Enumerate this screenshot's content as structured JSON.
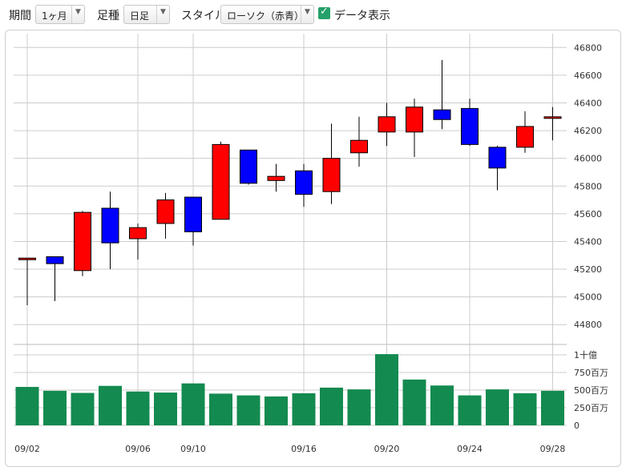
{
  "toolbar": {
    "period_label": "期間",
    "period_value": "1ヶ月",
    "interval_label": "足種",
    "interval_value": "日足",
    "style_label": "スタイル",
    "style_value": "ローソク（赤青）",
    "data_display_label": "データ表示",
    "data_display_checked": true
  },
  "colors": {
    "up": "#ff0000",
    "down": "#0000ff",
    "volume": "#138a4f",
    "grid": "#cccccc"
  },
  "chart_data": {
    "type": "candlestick",
    "price_axis": {
      "ticks": [
        "44800",
        "45000",
        "45200",
        "45400",
        "45600",
        "45800",
        "46000",
        "46200",
        "46400",
        "46600",
        "46800"
      ],
      "ylim": [
        44680,
        46900
      ]
    },
    "volume_axis": {
      "ticks": [
        "0",
        "250百万",
        "500百万",
        "750百万",
        "1十億"
      ],
      "ylim": [
        0,
        1000
      ]
    },
    "x_tick_labels": [
      {
        "label": "09/02",
        "index": 0
      },
      {
        "label": "09/06",
        "index": 4
      },
      {
        "label": "09/10",
        "index": 6
      },
      {
        "label": "09/16",
        "index": 10
      },
      {
        "label": "09/20",
        "index": 13
      },
      {
        "label": "09/24",
        "index": 16
      },
      {
        "label": "09/28",
        "index": 19
      }
    ],
    "candles": [
      {
        "o": 45270,
        "h": 45280,
        "l": 44940,
        "c": 45280,
        "v": 545
      },
      {
        "o": 45290,
        "h": 45290,
        "l": 44970,
        "c": 45240,
        "v": 490
      },
      {
        "o": 45190,
        "h": 45620,
        "l": 45150,
        "c": 45610,
        "v": 460
      },
      {
        "o": 45640,
        "h": 45760,
        "l": 45200,
        "c": 45390,
        "v": 560
      },
      {
        "o": 45420,
        "h": 45530,
        "l": 45270,
        "c": 45500,
        "v": 480
      },
      {
        "o": 45530,
        "h": 45750,
        "l": 45420,
        "c": 45700,
        "v": 465
      },
      {
        "o": 45720,
        "h": 45720,
        "l": 45370,
        "c": 45470,
        "v": 595
      },
      {
        "o": 45560,
        "h": 46120,
        "l": 45560,
        "c": 46100,
        "v": 450
      },
      {
        "o": 46060,
        "h": 46060,
        "l": 45810,
        "c": 45820,
        "v": 425
      },
      {
        "o": 45840,
        "h": 45960,
        "l": 45760,
        "c": 45870,
        "v": 410
      },
      {
        "o": 45910,
        "h": 45960,
        "l": 45650,
        "c": 45740,
        "v": 455
      },
      {
        "o": 45760,
        "h": 46250,
        "l": 45670,
        "c": 46000,
        "v": 535
      },
      {
        "o": 46040,
        "h": 46300,
        "l": 45940,
        "c": 46130,
        "v": 510
      },
      {
        "o": 46190,
        "h": 46400,
        "l": 46090,
        "c": 46300,
        "v": 1010
      },
      {
        "o": 46190,
        "h": 46430,
        "l": 46010,
        "c": 46370,
        "v": 650
      },
      {
        "o": 46350,
        "h": 46710,
        "l": 46210,
        "c": 46280,
        "v": 565
      },
      {
        "o": 46360,
        "h": 46430,
        "l": 46090,
        "c": 46100,
        "v": 425
      },
      {
        "o": 46080,
        "h": 46090,
        "l": 45770,
        "c": 45930,
        "v": 510
      },
      {
        "o": 46080,
        "h": 46340,
        "l": 46040,
        "c": 46230,
        "v": 455
      },
      {
        "o": 46290,
        "h": 46370,
        "l": 46130,
        "c": 46300,
        "v": 490
      }
    ]
  }
}
